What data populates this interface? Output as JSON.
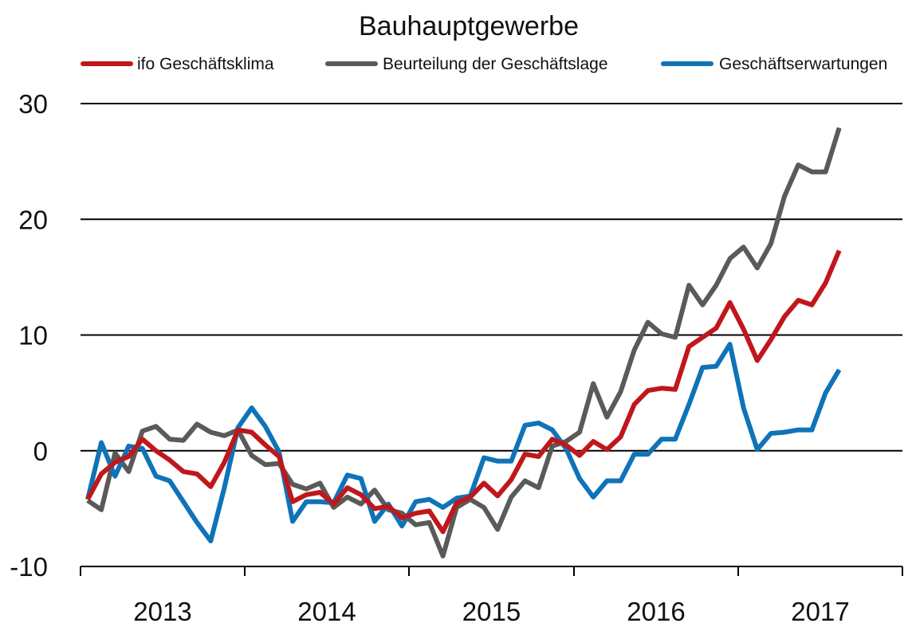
{
  "chart_data": {
    "type": "line",
    "title": "Bauhauptgewerbe",
    "xlabel": "",
    "ylabel": "",
    "ylim": [
      -10,
      30
    ],
    "yticks": [
      -10,
      0,
      10,
      20,
      30
    ],
    "ytick_labels": [
      "-10",
      "0",
      "10",
      "20",
      "30"
    ],
    "year_labels": [
      "2013",
      "2014",
      "2015",
      "2016",
      "2017"
    ],
    "x_start": "2013-01",
    "x_end": "2017-04",
    "grid": "horizontal",
    "legend_position": "top",
    "series": [
      {
        "name": "ifo Geschäftsklima",
        "color": "#c0171c",
        "values": [
          -4.2,
          -2.0,
          -1.0,
          -0.5,
          1.0,
          0.0,
          -0.8,
          -1.8,
          -2.0,
          -3.1,
          -1.0,
          1.8,
          1.6,
          0.5,
          -0.5,
          -4.4,
          -3.8,
          -3.6,
          -4.6,
          -3.2,
          -3.8,
          -5.0,
          -4.8,
          -5.8,
          -5.4,
          -5.2,
          -7.0,
          -4.5,
          -4.0,
          -2.8,
          -3.9,
          -2.5,
          -0.3,
          -0.5,
          1.0,
          0.5,
          -0.4,
          0.8,
          0.1,
          1.2,
          4.0,
          5.2,
          5.4,
          5.3,
          9.0,
          9.8,
          10.6,
          12.8,
          10.5,
          7.8,
          9.6,
          11.6,
          13.0,
          12.6,
          14.5,
          17.3
        ]
      },
      {
        "name": "Beurteilung der Geschäftslage",
        "color": "#5a5a5a",
        "values": [
          -4.3,
          -5.1,
          -0.2,
          -1.8,
          1.7,
          2.1,
          1.0,
          0.9,
          2.3,
          1.6,
          1.3,
          1.8,
          -0.4,
          -1.2,
          -1.1,
          -2.9,
          -3.3,
          -2.8,
          -4.9,
          -4.0,
          -4.6,
          -3.4,
          -5.1,
          -5.4,
          -6.4,
          -6.2,
          -9.1,
          -4.9,
          -4.2,
          -4.9,
          -6.8,
          -4.0,
          -2.6,
          -3.2,
          0.4,
          0.8,
          1.6,
          5.8,
          2.9,
          5.1,
          8.7,
          11.1,
          10.1,
          9.8,
          14.3,
          12.6,
          14.3,
          16.6,
          17.6,
          15.8,
          17.9,
          22.0,
          24.7,
          24.1,
          24.1,
          27.9
        ]
      },
      {
        "name": "Geschäftserwartungen",
        "color": "#0f73b8",
        "values": [
          -4.2,
          0.7,
          -2.2,
          0.4,
          0.2,
          -2.2,
          -2.6,
          -4.4,
          -6.2,
          -7.8,
          -3.2,
          2.0,
          3.7,
          2.1,
          -0.1,
          -6.1,
          -4.4,
          -4.4,
          -4.5,
          -2.1,
          -2.4,
          -6.1,
          -4.6,
          -6.5,
          -4.4,
          -4.2,
          -4.9,
          -4.1,
          -3.9,
          -0.6,
          -0.9,
          -0.9,
          2.2,
          2.4,
          1.8,
          0.2,
          -2.4,
          -4.0,
          -2.6,
          -2.6,
          -0.3,
          -0.3,
          1.0,
          1.0,
          4.0,
          7.2,
          7.3,
          9.2,
          3.7,
          0.1,
          1.5,
          1.6,
          1.8,
          1.8,
          5.0,
          7.0
        ]
      }
    ]
  }
}
